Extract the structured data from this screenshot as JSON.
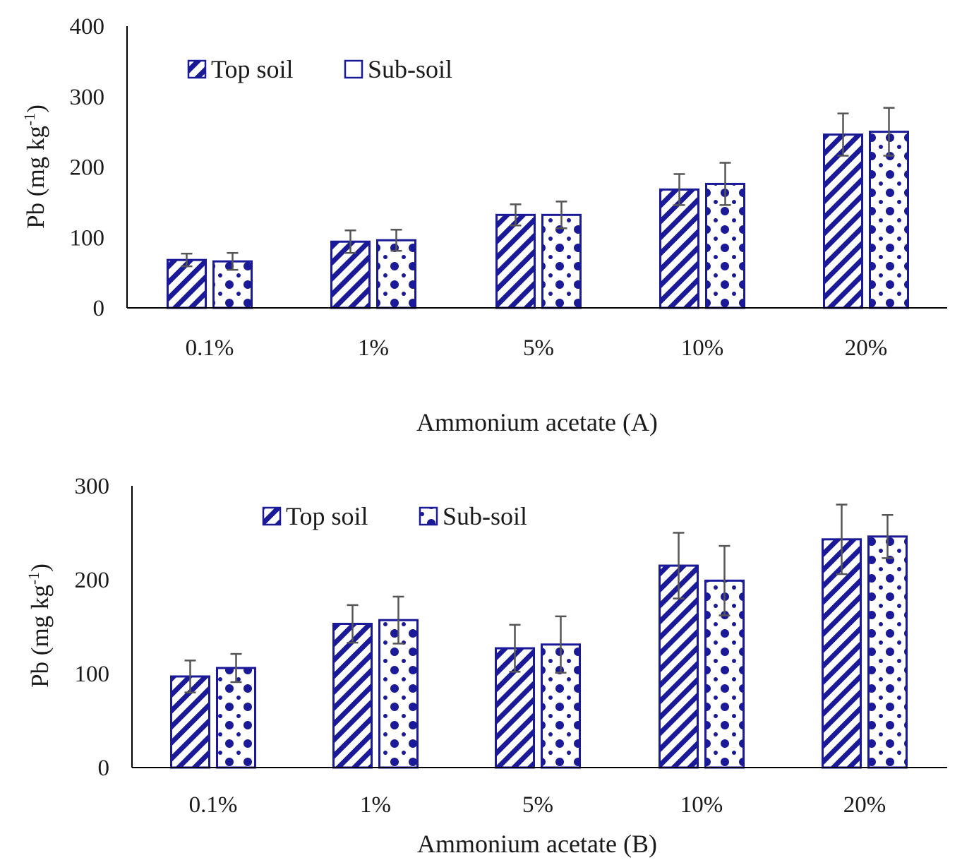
{
  "chart_data": [
    {
      "type": "bar",
      "title": "",
      "categories": [
        "0.1%",
        "1%",
        "5%",
        "10%",
        "20%"
      ],
      "xlabel": "Ammonium acetate (A)",
      "ylabel": "Pb (mg kg",
      "ylabel_sup": "-1",
      "ylabel_close": ")",
      "ylim": [
        0,
        400
      ],
      "yticks": [
        "0",
        "100",
        "200",
        "300",
        "400"
      ],
      "legend_position": "top-left",
      "series": [
        {
          "name": "Top soil",
          "pattern": "diagonal-stripes",
          "values": [
            68,
            94,
            132,
            168,
            246
          ],
          "errors": [
            9,
            16,
            15,
            22,
            30
          ]
        },
        {
          "name": "Sub-soil",
          "pattern": "dots",
          "values": [
            66,
            96,
            132,
            176,
            250
          ],
          "errors": [
            12,
            15,
            19,
            30,
            34
          ]
        }
      ]
    },
    {
      "type": "bar",
      "title": "",
      "categories": [
        "0.1%",
        "1%",
        "5%",
        "10%",
        "20%"
      ],
      "xlabel": "Ammonium acetate (B)",
      "ylabel": "Pb (mg kg",
      "ylabel_sup": "-1",
      "ylabel_close": ")",
      "ylim": [
        0,
        300
      ],
      "yticks": [
        "0",
        "100",
        "200",
        "300"
      ],
      "legend_position": "top-center",
      "series": [
        {
          "name": "Top soil",
          "pattern": "diagonal-stripes",
          "values": [
            97,
            153,
            127,
            215,
            243
          ],
          "errors": [
            17,
            20,
            25,
            35,
            37
          ]
        },
        {
          "name": "Sub-soil",
          "pattern": "dots",
          "values": [
            106,
            157,
            131,
            199,
            246
          ],
          "errors": [
            15,
            25,
            30,
            37,
            23
          ]
        }
      ]
    }
  ],
  "colors": {
    "bar": "#1a1a99",
    "fill": "#ffffff",
    "axis": "#000000",
    "error": "#555555",
    "text": "#1a1a1a"
  }
}
